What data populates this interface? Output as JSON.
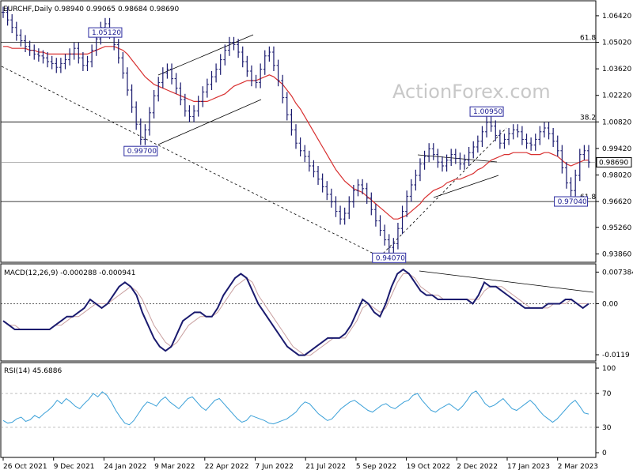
{
  "chart_data": {
    "type": "candlestick",
    "symbol": "EURCHF",
    "timeframe": "Daily",
    "header": "EURCHF,Daily  0.98940 0.99065 0.98684 0.98690",
    "ohlc_last": {
      "open": 0.9894,
      "high": 0.99065,
      "low": 0.98684,
      "close": 0.9869
    },
    "current_price_label": "0.98690",
    "watermark": "ActionForex.com",
    "price_axis_ticks": [
      "1.06420",
      "1.05020",
      "1.03620",
      "1.02220",
      "1.00820",
      "0.99420",
      "0.98020",
      "0.96620",
      "0.95260",
      "0.93860"
    ],
    "price_ylim": [
      0.935,
      1.07
    ],
    "x_ticks": [
      "26 Oct 2021",
      "9 Dec 2021",
      "24 Jan 2022",
      "9 Mar 2022",
      "22 Apr 2022",
      "7 Jun 2022",
      "21 Jul 2022",
      "5 Sep 2022",
      "19 Oct 2022",
      "2 Dec 2022",
      "17 Jan 2023",
      "2 Mar 2023"
    ],
    "price_series": [
      1.066,
      1.062,
      1.058,
      1.054,
      1.051,
      1.048,
      1.046,
      1.044,
      1.043,
      1.042,
      1.04,
      1.039,
      1.037,
      1.039,
      1.041,
      1.044,
      1.047,
      1.042,
      1.038,
      1.04,
      1.046,
      1.052,
      1.058,
      1.06,
      1.055,
      1.049,
      1.042,
      1.034,
      1.025,
      1.016,
      1.007,
      0.999,
      1.004,
      1.013,
      1.022,
      1.029,
      1.034,
      1.036,
      1.031,
      1.026,
      1.02,
      1.014,
      1.011,
      1.014,
      1.019,
      1.024,
      1.028,
      1.032,
      1.036,
      1.041,
      1.046,
      1.05,
      1.049,
      1.045,
      1.04,
      1.035,
      1.03,
      1.029,
      1.036,
      1.043,
      1.045,
      1.038,
      1.03,
      1.021,
      1.012,
      1.004,
      0.997,
      0.993,
      0.99,
      0.985,
      0.982,
      0.978,
      0.974,
      0.97,
      0.966,
      0.961,
      0.957,
      0.96,
      0.966,
      0.972,
      0.975,
      0.973,
      0.968,
      0.962,
      0.956,
      0.951,
      0.946,
      0.942,
      0.944,
      0.952,
      0.961,
      0.969,
      0.975,
      0.98,
      0.986,
      0.99,
      0.994,
      0.991,
      0.987,
      0.985,
      0.988,
      0.991,
      0.989,
      0.986,
      0.988,
      0.992,
      0.995,
      0.998,
      1.003,
      1.008,
      1.006,
      1.001,
      0.997,
      0.999,
      1.002,
      1.004,
      1.003,
      0.999,
      0.997,
      0.996,
      0.999,
      1.003,
      1.005,
      1.002,
      0.998,
      0.993,
      0.984,
      0.976,
      0.972,
      0.98,
      0.991,
      0.993,
      0.987
    ],
    "ma_series": [
      1.048,
      1.048,
      1.047,
      1.047,
      1.047,
      1.047,
      1.046,
      1.046,
      1.045,
      1.045,
      1.044,
      1.044,
      1.044,
      1.044,
      1.044,
      1.044,
      1.044,
      1.044,
      1.044,
      1.044,
      1.045,
      1.046,
      1.047,
      1.048,
      1.048,
      1.048,
      1.047,
      1.046,
      1.044,
      1.041,
      1.038,
      1.035,
      1.032,
      1.03,
      1.028,
      1.027,
      1.026,
      1.025,
      1.024,
      1.023,
      1.022,
      1.021,
      1.02,
      1.019,
      1.019,
      1.019,
      1.019,
      1.02,
      1.021,
      1.022,
      1.023,
      1.025,
      1.027,
      1.028,
      1.029,
      1.03,
      1.03,
      1.03,
      1.031,
      1.032,
      1.033,
      1.032,
      1.03,
      1.028,
      1.025,
      1.022,
      1.018,
      1.015,
      1.011,
      1.007,
      1.003,
      0.999,
      0.995,
      0.991,
      0.987,
      0.983,
      0.98,
      0.977,
      0.975,
      0.973,
      0.972,
      0.971,
      0.969,
      0.967,
      0.965,
      0.963,
      0.961,
      0.959,
      0.957,
      0.957,
      0.958,
      0.959,
      0.961,
      0.963,
      0.965,
      0.968,
      0.97,
      0.972,
      0.973,
      0.974,
      0.976,
      0.977,
      0.978,
      0.978,
      0.979,
      0.98,
      0.981,
      0.983,
      0.984,
      0.986,
      0.988,
      0.989,
      0.99,
      0.991,
      0.991,
      0.992,
      0.992,
      0.992,
      0.992,
      0.991,
      0.991,
      0.991,
      0.992,
      0.992,
      0.991,
      0.99,
      0.988,
      0.986,
      0.985,
      0.986,
      0.987,
      0.988,
      0.988
    ],
    "levels": [
      {
        "label": "61.8",
        "value": 1.0502
      },
      {
        "label": "38.2",
        "value": 1.0082
      },
      {
        "label": "61.8",
        "value": 0.9662
      },
      {
        "label": "",
        "value": 0.9869
      }
    ],
    "flags": [
      {
        "text": "1.05120",
        "value": 1.0512,
        "idx": 23
      },
      {
        "text": "0.99700",
        "value": 0.997,
        "idx": 31
      },
      {
        "text": "0.94070",
        "value": 0.9407,
        "idx": 87
      },
      {
        "text": "1.00950",
        "value": 1.0095,
        "idx": 109
      },
      {
        "text": "0.97040",
        "value": 0.9704,
        "idx": 128
      }
    ],
    "macd": {
      "label": "MACD(12,26,9) -0.000288 -0.000941",
      "ticks": [
        "0.007384",
        "0.00",
        "-0.0119"
      ],
      "ylim": [
        -0.013,
        0.0082
      ],
      "values": [
        -0.004,
        -0.005,
        -0.006,
        -0.006,
        -0.006,
        -0.006,
        -0.006,
        -0.006,
        -0.006,
        -0.005,
        -0.004,
        -0.003,
        -0.003,
        -0.002,
        -0.001,
        0.001,
        0.0,
        -0.001,
        0.0,
        0.002,
        0.004,
        0.005,
        0.004,
        0.002,
        -0.002,
        -0.005,
        -0.008,
        -0.01,
        -0.011,
        -0.01,
        -0.007,
        -0.004,
        -0.003,
        -0.002,
        -0.002,
        -0.003,
        -0.003,
        -0.001,
        0.002,
        0.004,
        0.006,
        0.007,
        0.006,
        0.003,
        0.0,
        -0.002,
        -0.004,
        -0.006,
        -0.008,
        -0.01,
        -0.011,
        -0.012,
        -0.012,
        -0.011,
        -0.01,
        -0.009,
        -0.008,
        -0.008,
        -0.008,
        -0.007,
        -0.005,
        -0.002,
        0.001,
        0.0,
        -0.002,
        -0.003,
        0.0,
        0.004,
        0.007,
        0.008,
        0.007,
        0.005,
        0.003,
        0.002,
        0.002,
        0.001,
        0.001,
        0.001,
        0.001,
        0.001,
        0.001,
        0.0,
        0.002,
        0.005,
        0.004,
        0.004,
        0.003,
        0.002,
        0.001,
        0.0,
        -0.001,
        -0.001,
        -0.001,
        -0.001,
        0.0,
        0.0,
        0.0,
        0.001,
        0.001,
        0.0,
        -0.001,
        0.0
      ],
      "signal": [
        -0.004,
        -0.005,
        -0.005,
        -0.006,
        -0.006,
        -0.006,
        -0.006,
        -0.006,
        -0.006,
        -0.005,
        -0.005,
        -0.004,
        -0.003,
        -0.003,
        -0.002,
        -0.001,
        0.0,
        0.0,
        0.0,
        0.001,
        0.002,
        0.003,
        0.004,
        0.003,
        0.001,
        -0.002,
        -0.005,
        -0.007,
        -0.009,
        -0.01,
        -0.009,
        -0.007,
        -0.005,
        -0.004,
        -0.003,
        -0.003,
        -0.003,
        -0.002,
        0.0,
        0.002,
        0.004,
        0.005,
        0.006,
        0.005,
        0.002,
        0.0,
        -0.002,
        -0.004,
        -0.006,
        -0.008,
        -0.01,
        -0.011,
        -0.012,
        -0.012,
        -0.011,
        -0.01,
        -0.009,
        -0.008,
        -0.008,
        -0.008,
        -0.006,
        -0.004,
        -0.001,
        0.0,
        -0.001,
        -0.002,
        -0.001,
        0.002,
        0.005,
        0.007,
        0.007,
        0.006,
        0.004,
        0.003,
        0.002,
        0.002,
        0.001,
        0.001,
        0.001,
        0.001,
        0.001,
        0.001,
        0.001,
        0.003,
        0.004,
        0.004,
        0.004,
        0.003,
        0.002,
        0.001,
        0.0,
        -0.001,
        -0.001,
        -0.001,
        -0.001,
        0.0,
        0.0,
        0.0,
        0.001,
        0.0,
        0.0,
        0.0
      ]
    },
    "rsi": {
      "label": "RSI(14) 45.6886",
      "ticks": [
        "100",
        "70",
        "30",
        "0"
      ],
      "ylim": [
        0,
        100
      ],
      "values": [
        38,
        35,
        36,
        40,
        42,
        37,
        39,
        44,
        41,
        46,
        50,
        55,
        62,
        58,
        64,
        60,
        55,
        52,
        58,
        63,
        70,
        66,
        72,
        68,
        60,
        50,
        42,
        35,
        33,
        38,
        46,
        54,
        60,
        58,
        55,
        62,
        66,
        60,
        56,
        52,
        58,
        64,
        66,
        60,
        54,
        50,
        56,
        62,
        64,
        58,
        52,
        46,
        40,
        36,
        38,
        44,
        42,
        40,
        38,
        35,
        34,
        36,
        38,
        40,
        44,
        48,
        55,
        60,
        58,
        52,
        46,
        42,
        38,
        40,
        46,
        52,
        56,
        60,
        62,
        58,
        54,
        50,
        48,
        52,
        56,
        58,
        54,
        52,
        56,
        60,
        62,
        68,
        70,
        62,
        56,
        50,
        48,
        52,
        55,
        58,
        54,
        50,
        55,
        62,
        70,
        73,
        66,
        58,
        54,
        56,
        60,
        64,
        58,
        52,
        50,
        54,
        58,
        62,
        57,
        50,
        44,
        40,
        36,
        40,
        46,
        52,
        58,
        62,
        55,
        47,
        45.6886
      ]
    }
  }
}
